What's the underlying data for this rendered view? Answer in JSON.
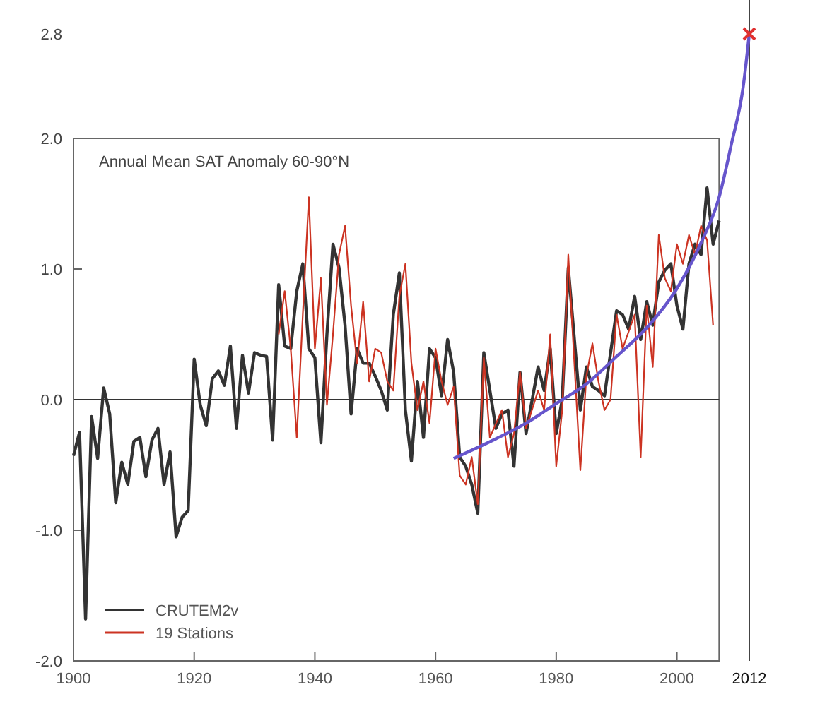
{
  "chart_data": {
    "type": "line",
    "title": "Annual Mean SAT Anomaly 60-90°N",
    "xlim": [
      1900,
      2012
    ],
    "xticks": [
      1900,
      1920,
      1940,
      1960,
      1980,
      2000,
      2012
    ],
    "ylim": [
      -2,
      2.8
    ],
    "yticks": [
      {
        "value": -2,
        "label": "-2.0"
      },
      {
        "value": -1,
        "label": "-1.0"
      },
      {
        "value": 0,
        "label": "0.0"
      },
      {
        "value": 1,
        "label": "1.0"
      },
      {
        "value": 2,
        "label": "2.0"
      },
      2.8
    ],
    "legend": "bottom left",
    "grid": false,
    "ref_lines": [
      {
        "axis": "y",
        "value": 0,
        "color": "#333333"
      },
      {
        "axis": "x",
        "value": 2012,
        "color": "#444444"
      }
    ],
    "series": [
      {
        "name": "CRUTEM2v",
        "color": "#333333",
        "x": [
          1900,
          1901,
          1902,
          1903,
          1904,
          1905,
          1906,
          1907,
          1908,
          1909,
          1910,
          1911,
          1912,
          1913,
          1914,
          1915,
          1916,
          1917,
          1918,
          1919,
          1920,
          1921,
          1922,
          1923,
          1924,
          1925,
          1926,
          1927,
          1928,
          1929,
          1930,
          1931,
          1932,
          1933,
          1934,
          1935,
          1936,
          1937,
          1938,
          1939,
          1940,
          1941,
          1942,
          1943,
          1944,
          1945,
          1946,
          1947,
          1948,
          1949,
          1950,
          1951,
          1952,
          1953,
          1954,
          1955,
          1956,
          1957,
          1958,
          1959,
          1960,
          1961,
          1962,
          1963,
          1964,
          1965,
          1966,
          1967,
          1968,
          1970,
          1971,
          1972,
          1973,
          1974,
          1975,
          1977,
          1978,
          1979,
          1980,
          1981,
          1982,
          1984,
          1985,
          1986,
          1987,
          1988,
          1990,
          1991,
          1992,
          1993,
          1994,
          1995,
          1996,
          1997,
          1998,
          1999,
          2000,
          2001,
          2002,
          2003,
          2004,
          2005,
          2006,
          2007
        ],
        "values": [
          -0.43,
          -0.25,
          -1.68,
          -0.13,
          -0.45,
          0.09,
          -0.11,
          -0.79,
          -0.48,
          -0.65,
          -0.32,
          -0.29,
          -0.59,
          -0.31,
          -0.22,
          -0.65,
          -0.4,
          -1.05,
          -0.9,
          -0.85,
          0.31,
          -0.04,
          -0.2,
          0.16,
          0.22,
          0.11,
          0.41,
          -0.22,
          0.34,
          0.05,
          0.36,
          0.34,
          0.33,
          -0.31,
          0.88,
          0.41,
          0.39,
          0.83,
          1.04,
          0.39,
          0.32,
          -0.33,
          0.5,
          1.19,
          1.01,
          0.57,
          -0.11,
          0.39,
          0.28,
          0.28,
          0.18,
          0.07,
          -0.08,
          0.65,
          0.97,
          -0.08,
          -0.47,
          0.14,
          -0.29,
          0.39,
          0.32,
          0.03,
          0.46,
          0.21,
          -0.44,
          -0.51,
          -0.65,
          -0.87,
          0.36,
          -0.22,
          -0.11,
          -0.08,
          -0.51,
          0.21,
          -0.26,
          0.25,
          0.07,
          0.39,
          -0.26,
          0,
          1.01,
          -0.08,
          0.25,
          0.1,
          0.07,
          0.03,
          0.68,
          0.65,
          0.54,
          0.79,
          0.46,
          0.75,
          0.57,
          0.9,
          0.99,
          1.04,
          0.72,
          0.54,
          1.04,
          1.19,
          1.11,
          1.62,
          1.19,
          1.37
        ]
      },
      {
        "name": "19 Stations",
        "color": "#cc3322",
        "x": [
          1934,
          1935,
          1936,
          1937,
          1938,
          1939,
          1940,
          1941,
          1942,
          1943,
          1944,
          1945,
          1946,
          1947,
          1948,
          1949,
          1950,
          1951,
          1952,
          1953,
          1954,
          1955,
          1956,
          1957,
          1958,
          1959,
          1960,
          1961,
          1962,
          1963,
          1964,
          1965,
          1966,
          1967,
          1968,
          1969,
          1971,
          1972,
          1973,
          1974,
          1975,
          1977,
          1978,
          1979,
          1980,
          1981,
          1982,
          1984,
          1985,
          1986,
          1987,
          1988,
          1989,
          1990,
          1991,
          1993,
          1994,
          1995,
          1996,
          1997,
          1998,
          1999,
          2000,
          2001,
          2002,
          2003,
          2004,
          2005,
          2006
        ],
        "values": [
          0.5,
          0.83,
          0.39,
          -0.29,
          0.65,
          1.55,
          0.39,
          0.93,
          -0.04,
          0.5,
          1.11,
          1.33,
          0.72,
          0.28,
          0.75,
          0.14,
          0.39,
          0.36,
          0.14,
          0.07,
          0.79,
          1.04,
          0.28,
          -0.08,
          0.14,
          -0.18,
          0.39,
          0.14,
          -0.04,
          0.1,
          -0.58,
          -0.65,
          -0.44,
          -0.8,
          0.32,
          -0.29,
          -0.08,
          -0.44,
          -0.26,
          0.21,
          -0.22,
          0.07,
          -0.08,
          0.5,
          -0.51,
          -0.08,
          1.11,
          -0.54,
          0.18,
          0.43,
          0.14,
          -0.08,
          0,
          0.65,
          0.39,
          0.65,
          -0.44,
          0.72,
          0.25,
          1.26,
          0.93,
          0.83,
          1.19,
          1.04,
          1.26,
          1.11,
          1.33,
          1.22,
          0.57
        ]
      },
      {
        "color": "#6655cc",
        "x": [
          1963,
          1970,
          1975,
          1980,
          1985,
          1990,
          1995,
          2000,
          2004,
          2007,
          2009,
          2011,
          2012
        ],
        "values": [
          -0.45,
          -0.3,
          -0.18,
          -0.03,
          0.12,
          0.33,
          0.55,
          0.85,
          1.2,
          1.55,
          1.95,
          2.4,
          2.8
        ]
      },
      {
        "type": "scatter",
        "marker": "cross",
        "color": "#e03030",
        "x": [
          2012
        ],
        "values": [
          2.8
        ]
      }
    ]
  }
}
